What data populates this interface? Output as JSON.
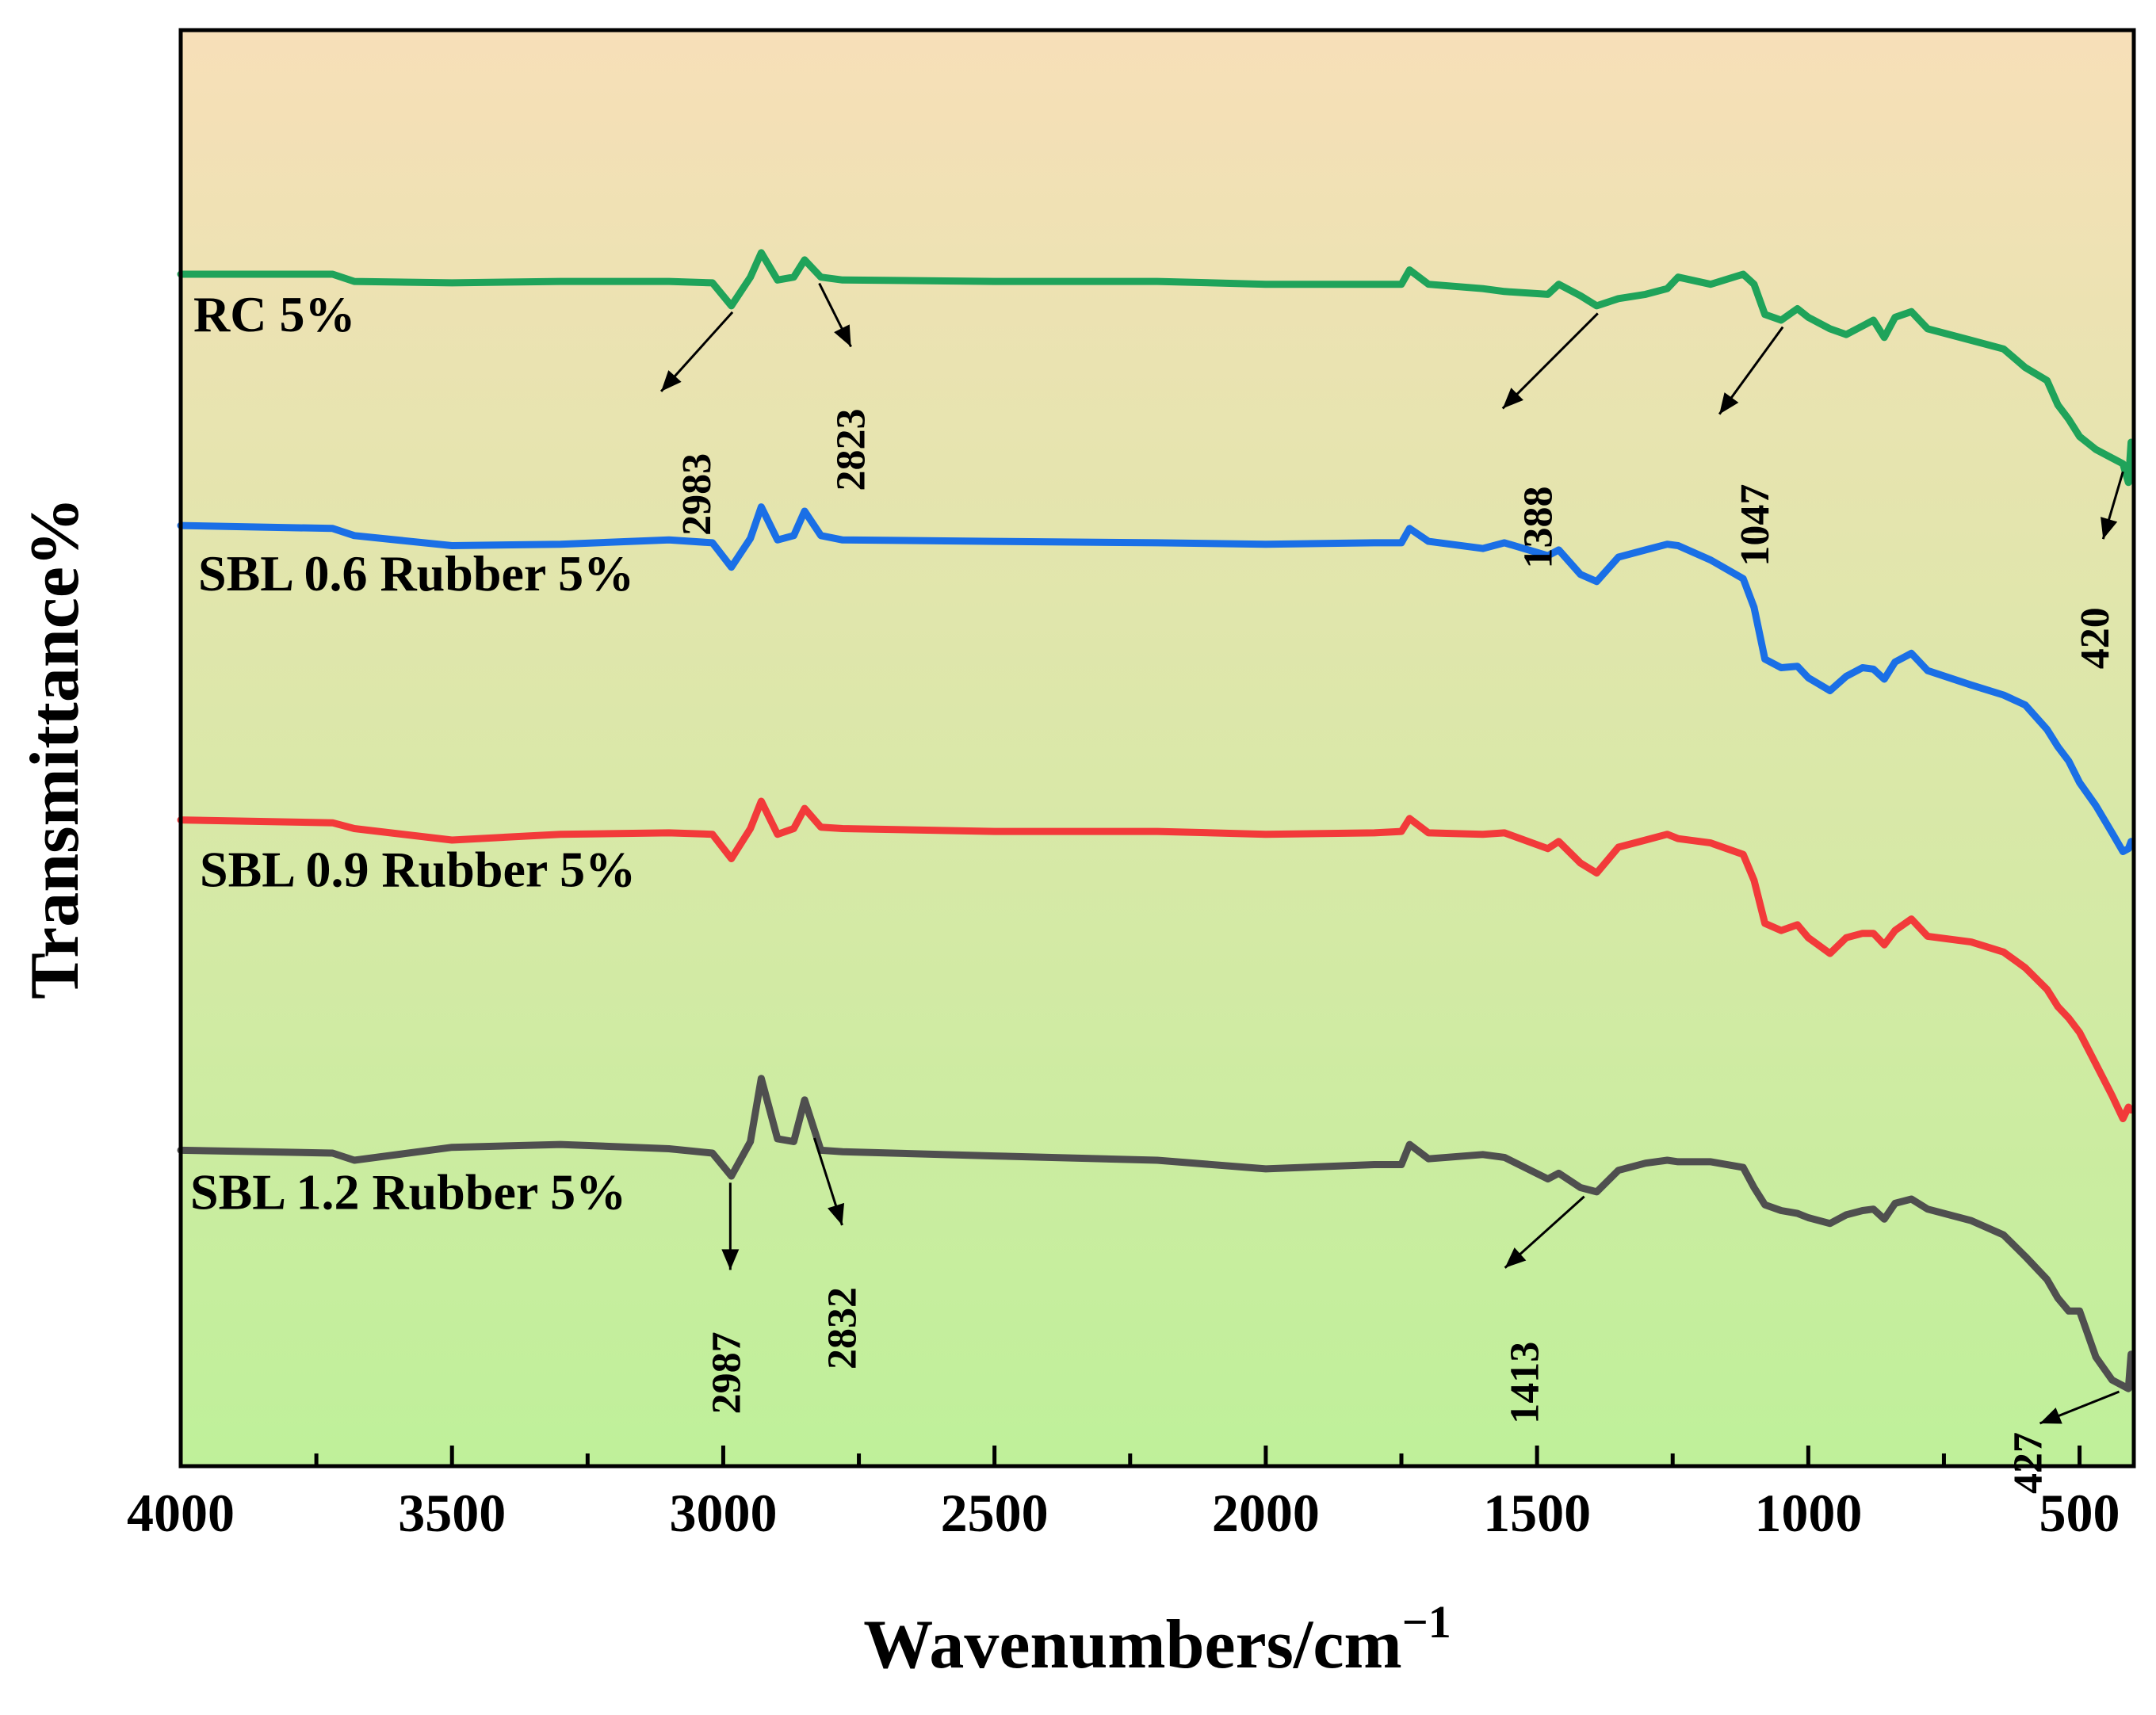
{
  "chart_data": {
    "type": "line",
    "title": "",
    "xlabel": "Wavenumbers/cm",
    "xlabel_sup": "−1",
    "ylabel": "Transmittance%",
    "xlim": [
      4000,
      400
    ],
    "ylim": [
      0,
      100
    ],
    "xticks": [
      4000,
      3500,
      3000,
      2500,
      2000,
      1500,
      1000,
      500
    ],
    "xtick_labels": [
      "4000",
      "3500",
      "3000",
      "2500",
      "2000",
      "1500",
      "1000",
      "500"
    ],
    "background_gradient": [
      "#f7dfb8",
      "#bff09a"
    ],
    "series": [
      {
        "name": "RC 5%",
        "color": "#1fa35a",
        "x": [
          4000,
          3720,
          3680,
          3500,
          3300,
          3100,
          3020,
          2985,
          2950,
          2930,
          2900,
          2870,
          2850,
          2820,
          2780,
          2500,
          2200,
          2000,
          1800,
          1750,
          1735,
          1700,
          1600,
          1560,
          1480,
          1460,
          1420,
          1390,
          1350,
          1300,
          1260,
          1240,
          1180,
          1120,
          1100,
          1080,
          1050,
          1020,
          1000,
          960,
          930,
          900,
          880,
          860,
          840,
          810,
          780,
          700,
          640,
          600,
          560,
          540,
          520,
          500,
          470,
          440,
          420,
          410,
          405
        ],
        "values": [
          83,
          83,
          82.5,
          82.4,
          82.5,
          82.5,
          82.4,
          80.8,
          82.8,
          84.5,
          82.6,
          82.8,
          84,
          82.8,
          82.6,
          82.5,
          82.5,
          82.3,
          82.3,
          82.3,
          83.3,
          82.3,
          82,
          81.8,
          81.6,
          82.3,
          81.5,
          80.8,
          81.3,
          81.6,
          82.0,
          82.8,
          82.3,
          83.0,
          82.3,
          80.2,
          79.8,
          80.6,
          80.0,
          79.2,
          78.8,
          79.4,
          79.8,
          78.6,
          80.0,
          80.4,
          79.2,
          78.4,
          77.8,
          76.5,
          75.6,
          73.9,
          72.9,
          71.7,
          70.8,
          70.2,
          69.8,
          68.5,
          71.3
        ]
      },
      {
        "name": "SBL 0.6 Rubber 5%",
        "color": "#1a6fe6",
        "x": [
          4000,
          3720,
          3680,
          3500,
          3300,
          3100,
          3020,
          2985,
          2950,
          2930,
          2900,
          2870,
          2850,
          2820,
          2780,
          2500,
          2200,
          2000,
          1800,
          1750,
          1735,
          1700,
          1600,
          1560,
          1480,
          1460,
          1420,
          1390,
          1350,
          1300,
          1260,
          1240,
          1180,
          1120,
          1100,
          1080,
          1050,
          1020,
          1000,
          960,
          930,
          900,
          880,
          860,
          840,
          810,
          780,
          700,
          640,
          600,
          560,
          540,
          520,
          500,
          470,
          440,
          420,
          410,
          405
        ],
        "values": [
          65.5,
          65.3,
          64.8,
          64.1,
          64.2,
          64.5,
          64.3,
          62.6,
          64.6,
          66.8,
          64.5,
          64.8,
          66.5,
          64.8,
          64.5,
          64.4,
          64.3,
          64.2,
          64.3,
          64.3,
          65.3,
          64.4,
          63.9,
          64.3,
          63.4,
          63.8,
          62.1,
          61.6,
          63.3,
          63.8,
          64.2,
          64.1,
          63.1,
          61.8,
          59.8,
          56.2,
          55.6,
          55.7,
          54.9,
          54.0,
          55.0,
          55.6,
          55.5,
          54.8,
          56.0,
          56.6,
          55.4,
          54.4,
          53.7,
          53.0,
          51.3,
          50.1,
          49.1,
          47.6,
          46.0,
          44.1,
          42.8,
          43.0,
          43.5
        ]
      },
      {
        "name": "SBL 0.9 Rubber 5%",
        "color": "#f23a3a",
        "x": [
          4000,
          3720,
          3680,
          3500,
          3300,
          3100,
          3020,
          2985,
          2950,
          2930,
          2900,
          2870,
          2850,
          2820,
          2780,
          2500,
          2200,
          2000,
          1800,
          1750,
          1735,
          1700,
          1600,
          1560,
          1480,
          1460,
          1420,
          1390,
          1350,
          1300,
          1260,
          1240,
          1180,
          1120,
          1100,
          1080,
          1050,
          1020,
          1000,
          960,
          930,
          900,
          880,
          860,
          840,
          810,
          780,
          700,
          640,
          600,
          560,
          540,
          520,
          500,
          470,
          440,
          420,
          410,
          405
        ],
        "values": [
          45,
          44.8,
          44.4,
          43.6,
          44.0,
          44.1,
          44.0,
          42.3,
          44.4,
          46.3,
          44.0,
          44.4,
          45.8,
          44.5,
          44.4,
          44.2,
          44.2,
          44.0,
          44.1,
          44.2,
          45.1,
          44.1,
          44.0,
          44.1,
          43.0,
          43.5,
          42.0,
          41.3,
          43.1,
          43.6,
          44.0,
          43.7,
          43.4,
          42.6,
          40.8,
          37.8,
          37.3,
          37.7,
          36.8,
          35.7,
          36.8,
          37.1,
          37.1,
          36.3,
          37.3,
          38.1,
          36.9,
          36.5,
          35.8,
          34.7,
          33.2,
          32.0,
          31.2,
          30.2,
          28.0,
          25.8,
          24.2,
          25.0,
          24.8
        ]
      },
      {
        "name": "SBL 1.2 Rubber 5%",
        "color": "#4f4f4f",
        "x": [
          4000,
          3720,
          3680,
          3500,
          3300,
          3100,
          3020,
          2985,
          2950,
          2930,
          2900,
          2870,
          2850,
          2820,
          2780,
          2500,
          2200,
          2000,
          1800,
          1750,
          1735,
          1700,
          1600,
          1560,
          1480,
          1460,
          1420,
          1390,
          1350,
          1300,
          1260,
          1240,
          1180,
          1120,
          1100,
          1080,
          1050,
          1020,
          1000,
          960,
          930,
          900,
          880,
          860,
          840,
          810,
          780,
          700,
          640,
          600,
          560,
          540,
          520,
          500,
          470,
          440,
          420,
          410,
          405
        ],
        "values": [
          22,
          21.8,
          21.3,
          22.2,
          22.4,
          22.1,
          21.8,
          20.2,
          22.6,
          27.0,
          22.8,
          22.6,
          25.5,
          22.0,
          21.9,
          21.6,
          21.3,
          20.7,
          21.0,
          21.0,
          22.4,
          21.4,
          21.7,
          21.5,
          20.0,
          20.4,
          19.4,
          19.1,
          20.6,
          21.1,
          21.3,
          21.2,
          21.2,
          20.8,
          19.4,
          18.2,
          17.8,
          17.6,
          17.3,
          16.9,
          17.5,
          17.8,
          17.9,
          17.2,
          18.3,
          18.6,
          17.9,
          17.1,
          16.1,
          14.6,
          13.0,
          11.7,
          10.8,
          10.8,
          7.6,
          6.0,
          5.6,
          5.4,
          7.8
        ]
      }
    ],
    "series_label_text": [
      "RC 5%",
      "SBL 0.6 Rubber 5%",
      "SBL 0.9 Rubber 5%",
      "SBL 1.2 Rubber 5%"
    ],
    "annotations": [
      {
        "text": "2983",
        "x": 2983,
        "series": 0
      },
      {
        "text": "2823",
        "x": 2823,
        "series": 0
      },
      {
        "text": "1388",
        "x": 1388,
        "series": 0
      },
      {
        "text": "1047",
        "x": 1047,
        "series": 0
      },
      {
        "text": "420",
        "x": 420,
        "series": 0
      },
      {
        "text": "2987",
        "x": 2987,
        "series": 3
      },
      {
        "text": "2832",
        "x": 2832,
        "series": 3
      },
      {
        "text": "1413",
        "x": 1413,
        "series": 3
      },
      {
        "text": "427",
        "x": 427,
        "series": 3
      }
    ]
  }
}
